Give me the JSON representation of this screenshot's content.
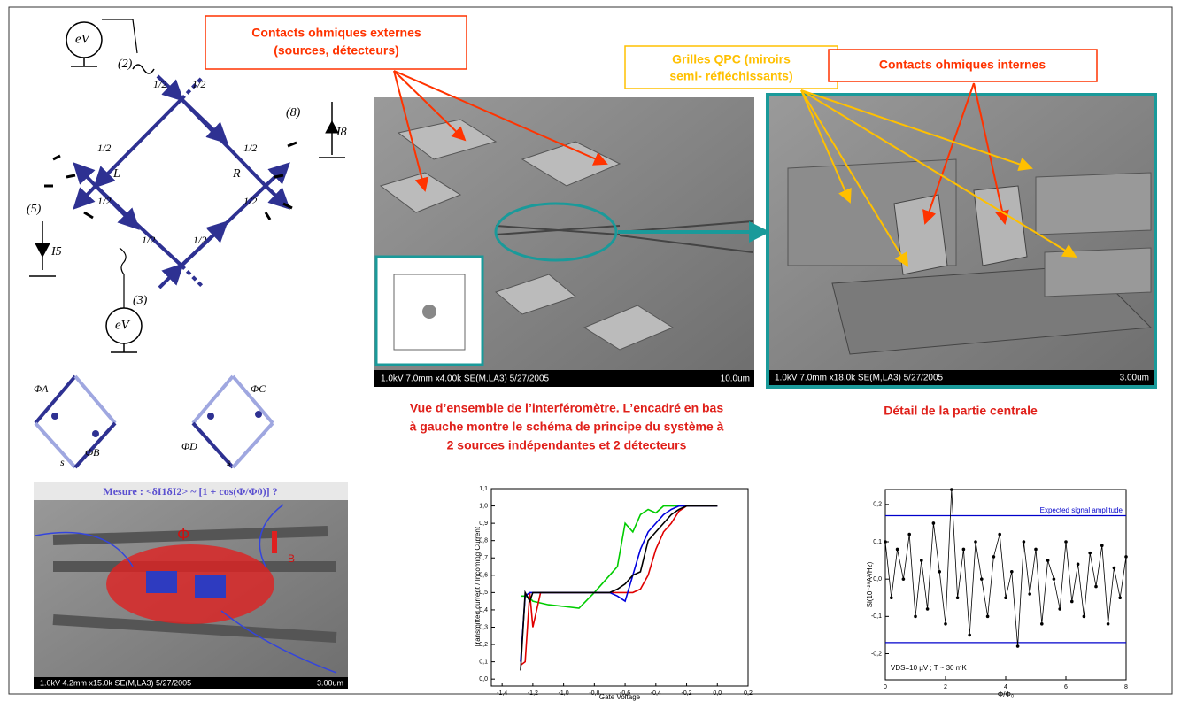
{
  "callouts": {
    "external": [
      "Contacts ohmiques externes",
      "(sources, détecteurs)"
    ],
    "gates": [
      "Grilles QPC (miroirs",
      "semi- réfléchissants)"
    ],
    "internal": "Contacts ohmiques internes"
  },
  "circuit": {
    "labels": [
      "eV",
      "(2)",
      "1/2",
      "1/2",
      "1/2",
      "1/2",
      "L",
      "R",
      "1/2",
      "1/2",
      "(8)",
      "I8",
      "(5)",
      "I5",
      "1/2",
      "1/2",
      "(3)",
      "eV"
    ]
  },
  "phase_diagrams": {
    "labels": [
      "ΦA",
      "ΦB",
      "s",
      "ΦC",
      "ΦD",
      "s"
    ]
  },
  "images": [
    {
      "info": "1.0kV 7.0mm x4.00k SE(M,LA3) 5/27/2005",
      "scale": "10.0um"
    },
    {
      "info": "1.0kV 7.0mm x18.0k SE(M,LA3) 5/27/2005",
      "scale": "3.00um"
    }
  ],
  "bottom_image": {
    "title": "Mesure : <δI1δI2> ~ [1 + cos(Φ/Φ0)] ?",
    "labels": [
      "Φ",
      "B"
    ],
    "info": "1.0kV 4.2mm x15.0k SE(M,LA3) 5/27/2005",
    "scale": "3.00um"
  },
  "captions": {
    "overview": [
      "Vue d’ensemble de l’interféromètre. L’encadré en bas",
      "à gauche montre le schéma de principe du système à",
      "2 sources indépendantes et 2 détecteurs"
    ],
    "detail": "Détail de la partie centrale"
  },
  "chart_data": [
    {
      "type": "line",
      "markers": false,
      "xlabel": "Gate Voltage",
      "ylabel": "Transmitted current / Incoming Current",
      "x": [
        -1.28,
        -1.25,
        -1.22,
        -1.2,
        -1.15,
        -1.1,
        -1.0,
        -0.9,
        -0.8,
        -0.7,
        -0.65,
        -0.6,
        -0.55,
        -0.5,
        -0.45,
        -0.4,
        -0.35,
        -0.3,
        -0.25,
        -0.2,
        -0.1,
        0.0
      ],
      "series": [
        {
          "color": "#00cc00",
          "values": [
            0.48,
            0.48,
            0.47,
            0.45,
            0.44,
            0.43,
            0.42,
            0.41,
            0.5,
            0.6,
            0.65,
            0.9,
            0.85,
            0.95,
            0.98,
            0.96,
            1.0,
            1.0,
            1.0,
            1.0,
            1.0,
            1.0
          ]
        },
        {
          "color": "#e00000",
          "values": [
            0.08,
            0.1,
            0.5,
            0.3,
            0.5,
            0.5,
            0.5,
            0.5,
            0.5,
            0.5,
            0.5,
            0.5,
            0.5,
            0.52,
            0.6,
            0.75,
            0.85,
            0.9,
            0.97,
            1.0,
            1.0,
            1.0
          ]
        },
        {
          "color": "#0000dd",
          "values": [
            0.1,
            0.48,
            0.5,
            0.5,
            0.5,
            0.5,
            0.5,
            0.5,
            0.5,
            0.5,
            0.48,
            0.45,
            0.6,
            0.75,
            0.85,
            0.9,
            0.95,
            0.98,
            1.0,
            1.0,
            1.0,
            1.0
          ]
        },
        {
          "color": "#000000",
          "values": [
            0.05,
            0.5,
            0.45,
            0.5,
            0.5,
            0.5,
            0.5,
            0.5,
            0.5,
            0.5,
            0.52,
            0.55,
            0.6,
            0.62,
            0.8,
            0.85,
            0.9,
            0.95,
            0.98,
            1.0,
            1.0,
            1.0
          ]
        }
      ],
      "xlim": [
        -1.47,
        0.2
      ],
      "ylim": [
        -0.04,
        1.1
      ],
      "xticks": [
        {
          "value": -1.4,
          "label": "-1,4"
        },
        {
          "value": -1.2,
          "label": "-1,2"
        },
        {
          "value": -1.0,
          "label": "-1,0"
        },
        {
          "value": -0.8,
          "label": "-0,8"
        },
        {
          "value": -0.6,
          "label": "-0,6"
        },
        {
          "value": -0.4,
          "label": "-0,4"
        },
        {
          "value": -0.2,
          "label": "-0,2"
        },
        {
          "value": 0,
          "label": "0,0"
        },
        {
          "value": 0.2,
          "label": "0,2"
        }
      ],
      "yticks": [
        {
          "value": 0,
          "label": "0,0"
        },
        {
          "value": 0.1,
          "label": "0,1"
        },
        {
          "value": 0.2,
          "label": "0,2"
        },
        {
          "value": 0.3,
          "label": "0,3"
        },
        {
          "value": 0.4,
          "label": "0,4"
        },
        {
          "value": 0.5,
          "label": "0,5"
        },
        {
          "value": 0.6,
          "label": "0,6"
        },
        {
          "value": 0.7,
          "label": "0,7"
        },
        {
          "value": 0.8,
          "label": "0,8"
        },
        {
          "value": 0.9,
          "label": "0,9"
        },
        {
          "value": 1.0,
          "label": "1,0"
        },
        {
          "value": 1.1,
          "label": "1,1"
        }
      ]
    },
    {
      "type": "line",
      "markers": true,
      "xlabel": "Φ/Φ₀",
      "ylabel": "Si(10⁻²⁹A²/Hz)",
      "annotations": [
        "Expected signal amplitude",
        "VDS=10 µV ; T ~ 30 mK"
      ],
      "hlines": [
        0.17,
        -0.17
      ],
      "hline_color": "#0000cc",
      "x": [
        0,
        0.2,
        0.4,
        0.6,
        0.8,
        1,
        1.2,
        1.4,
        1.6,
        1.8,
        2,
        2.2,
        2.4,
        2.6,
        2.8,
        3,
        3.2,
        3.4,
        3.6,
        3.8,
        4,
        4.2,
        4.4,
        4.6,
        4.8,
        5,
        5.2,
        5.4,
        5.6,
        5.8,
        6,
        6.2,
        6.4,
        6.6,
        6.8,
        7,
        7.2,
        7.4,
        7.6,
        7.8,
        8
      ],
      "series": [
        {
          "color": "#000000",
          "values": [
            0.1,
            -0.05,
            0.08,
            0.0,
            0.12,
            -0.1,
            0.05,
            -0.08,
            0.15,
            0.02,
            -0.12,
            0.24,
            -0.05,
            0.08,
            -0.15,
            0.1,
            0.0,
            -0.1,
            0.06,
            0.12,
            -0.05,
            0.02,
            -0.18,
            0.1,
            -0.04,
            0.08,
            -0.12,
            0.05,
            0.0,
            -0.08,
            0.1,
            -0.06,
            0.04,
            -0.1,
            0.07,
            -0.02,
            0.09,
            -0.12,
            0.03,
            -0.05,
            0.06
          ]
        }
      ],
      "xlim": [
        0,
        8
      ],
      "ylim": [
        -0.27,
        0.24
      ],
      "xticks": [
        0,
        2,
        4,
        6,
        8
      ],
      "yticks": [
        {
          "value": -0.2,
          "label": "-0,2"
        },
        {
          "value": -0.1,
          "label": "-0,1"
        },
        {
          "value": 0,
          "label": "0,0"
        },
        {
          "value": 0.1,
          "label": "0,1"
        },
        {
          "value": 0.2,
          "label": "0,2"
        }
      ]
    }
  ]
}
